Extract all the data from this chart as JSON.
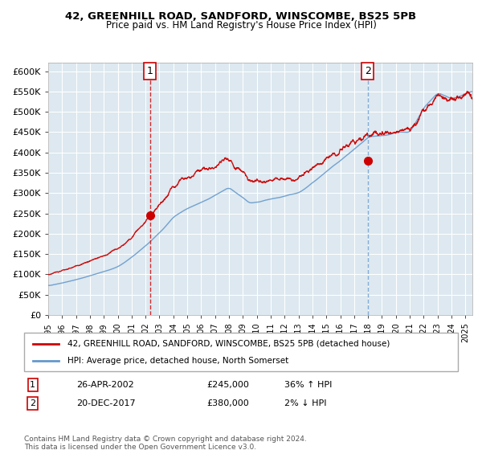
{
  "title1": "42, GREENHILL ROAD, SANDFORD, WINSCOMBE, BS25 5PB",
  "title2": "Price paid vs. HM Land Registry's House Price Index (HPI)",
  "ylabel_ticks": [
    "£0",
    "£50K",
    "£100K",
    "£150K",
    "£200K",
    "£250K",
    "£300K",
    "£350K",
    "£400K",
    "£450K",
    "£500K",
    "£550K",
    "£600K"
  ],
  "ytick_values": [
    0,
    50000,
    100000,
    150000,
    200000,
    250000,
    300000,
    350000,
    400000,
    450000,
    500000,
    550000,
    600000
  ],
  "xlim_start": 1995.0,
  "xlim_end": 2025.5,
  "ylim_min": 0,
  "ylim_max": 620000,
  "red_line_color": "#cc0000",
  "blue_line_color": "#6699cc",
  "background_color": "#dde8f0",
  "grid_color": "#ffffff",
  "marker1_date": 2002.32,
  "marker1_value": 245000,
  "marker2_date": 2017.97,
  "marker2_value": 380000,
  "vline1_x": 2002.32,
  "vline2_x": 2017.97,
  "legend_line1": "42, GREENHILL ROAD, SANDFORD, WINSCOMBE, BS25 5PB (detached house)",
  "legend_line2": "HPI: Average price, detached house, North Somerset",
  "annotation1_label": "1",
  "annotation2_label": "2",
  "footnote1": "Contains HM Land Registry data © Crown copyright and database right 2024.",
  "footnote2": "This data is licensed under the Open Government Licence v3.0.",
  "table_row1": [
    "1",
    "26-APR-2002",
    "£245,000",
    "36% ↑ HPI"
  ],
  "table_row2": [
    "2",
    "20-DEC-2017",
    "£380,000",
    "2% ↓ HPI"
  ]
}
